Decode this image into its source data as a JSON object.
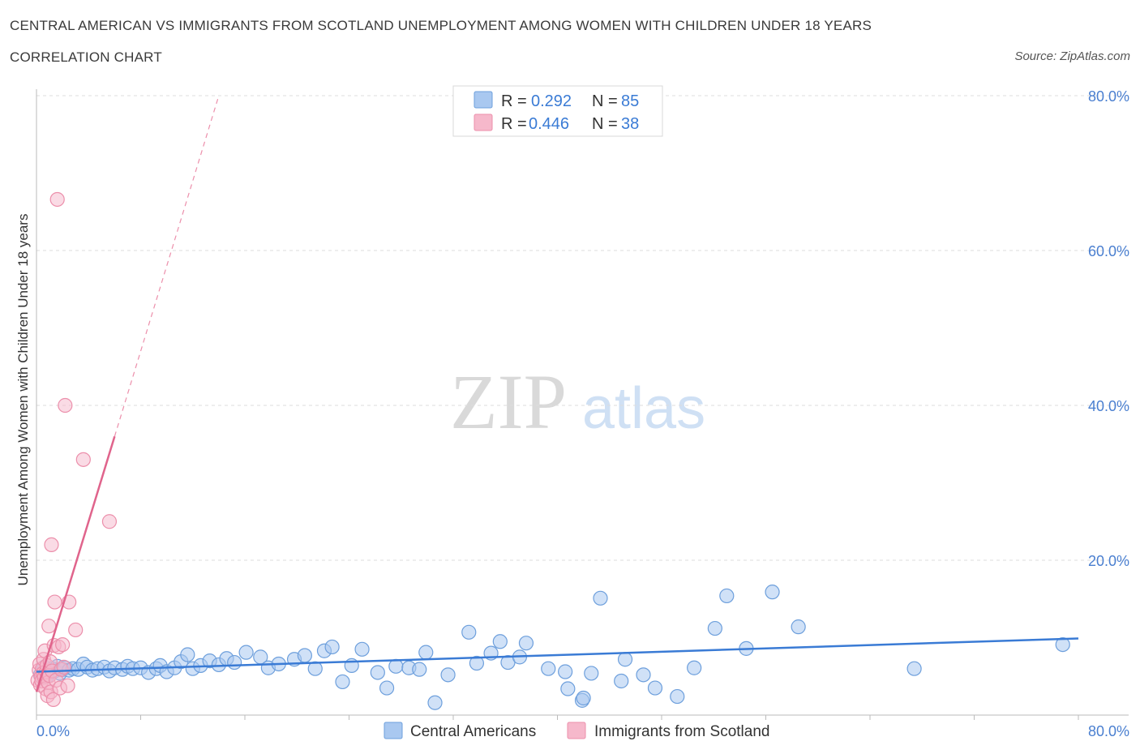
{
  "header": {
    "title": "CENTRAL AMERICAN VS IMMIGRANTS FROM SCOTLAND UNEMPLOYMENT AMONG WOMEN WITH CHILDREN UNDER 18 YEARS",
    "subtitle": "CORRELATION CHART",
    "source": "Source: ZipAtlas.com"
  },
  "watermark": {
    "zip": "ZIP",
    "atlas": "atlas"
  },
  "legend_top": {
    "rows": [
      {
        "r_label": "R =",
        "r_value": "0.292",
        "n_label": "N =",
        "n_value": "85"
      },
      {
        "r_label": "R =",
        "r_value": "0.446",
        "n_label": "N =",
        "n_value": "38"
      }
    ]
  },
  "legend_bottom": {
    "items": [
      {
        "label": "Central Americans"
      },
      {
        "label": "Immigrants from Scotland"
      }
    ]
  },
  "colors": {
    "blue_fill": "#a9c8f0",
    "blue_stroke": "#6d9fdc",
    "blue_line": "#3a7bd5",
    "pink_fill": "#f6b8cb",
    "pink_stroke": "#ec8fab",
    "pink_line": "#e0648c",
    "tick_text": "#4a7fd0",
    "grid": "#dddddd"
  },
  "chart_data": {
    "type": "scatter",
    "title": "CENTRAL AMERICAN VS IMMIGRANTS FROM SCOTLAND UNEMPLOYMENT AMONG WOMEN WITH CHILDREN UNDER 18 YEARS",
    "xlabel": "",
    "ylabel": "Unemployment Among Women with Children Under 18 years",
    "xlim": [
      0,
      80
    ],
    "ylim": [
      0,
      80
    ],
    "x_tick_labels": [
      "0.0%",
      "80.0%"
    ],
    "y_tick_labels": [
      "20.0%",
      "40.0%",
      "60.0%",
      "80.0%"
    ],
    "y_ticks": [
      20,
      40,
      60,
      80
    ],
    "grid": true,
    "legend_position": "top-center",
    "series": [
      {
        "name": "Central Americans",
        "R": 0.292,
        "N": 85,
        "trend": {
          "x": [
            0,
            80
          ],
          "y": [
            5.6,
            9.9
          ]
        },
        "points": [
          [
            0.3,
            5.2
          ],
          [
            0.5,
            5.8
          ],
          [
            0.6,
            6.2
          ],
          [
            0.8,
            5.0
          ],
          [
            1.0,
            5.5
          ],
          [
            1.2,
            6.0
          ],
          [
            1.4,
            5.7
          ],
          [
            1.6,
            6.3
          ],
          [
            1.8,
            5.4
          ],
          [
            2.0,
            5.9
          ],
          [
            2.2,
            6.1
          ],
          [
            2.5,
            5.8
          ],
          [
            2.8,
            6.0
          ],
          [
            3.2,
            5.9
          ],
          [
            3.6,
            6.6
          ],
          [
            3.9,
            6.2
          ],
          [
            4.3,
            5.8
          ],
          [
            4.7,
            6.0
          ],
          [
            5.2,
            6.2
          ],
          [
            5.6,
            5.7
          ],
          [
            6.0,
            6.1
          ],
          [
            6.6,
            5.9
          ],
          [
            7.0,
            6.3
          ],
          [
            7.4,
            6.0
          ],
          [
            8.0,
            6.1
          ],
          [
            8.6,
            5.5
          ],
          [
            9.2,
            6.0
          ],
          [
            9.5,
            6.4
          ],
          [
            10.0,
            5.6
          ],
          [
            10.6,
            6.1
          ],
          [
            11.1,
            6.9
          ],
          [
            11.6,
            7.8
          ],
          [
            12.0,
            6.0
          ],
          [
            12.6,
            6.4
          ],
          [
            13.3,
            7.0
          ],
          [
            14.0,
            6.5
          ],
          [
            14.6,
            7.3
          ],
          [
            15.2,
            6.8
          ],
          [
            16.1,
            8.1
          ],
          [
            17.2,
            7.5
          ],
          [
            17.8,
            6.1
          ],
          [
            18.6,
            6.6
          ],
          [
            19.8,
            7.2
          ],
          [
            20.6,
            7.7
          ],
          [
            21.4,
            6.0
          ],
          [
            22.1,
            8.3
          ],
          [
            22.7,
            8.8
          ],
          [
            23.5,
            4.3
          ],
          [
            24.2,
            6.4
          ],
          [
            25.0,
            8.5
          ],
          [
            26.2,
            5.5
          ],
          [
            26.9,
            3.5
          ],
          [
            27.6,
            6.3
          ],
          [
            28.6,
            6.1
          ],
          [
            29.4,
            5.9
          ],
          [
            29.9,
            8.1
          ],
          [
            30.6,
            1.6
          ],
          [
            31.6,
            5.2
          ],
          [
            33.2,
            10.7
          ],
          [
            33.8,
            6.7
          ],
          [
            34.9,
            8.0
          ],
          [
            35.6,
            9.5
          ],
          [
            36.2,
            6.8
          ],
          [
            37.1,
            7.5
          ],
          [
            37.6,
            9.3
          ],
          [
            39.3,
            6.0
          ],
          [
            40.6,
            5.6
          ],
          [
            40.8,
            3.4
          ],
          [
            41.9,
            1.9
          ],
          [
            42.6,
            5.4
          ],
          [
            43.3,
            15.1
          ],
          [
            44.9,
            4.4
          ],
          [
            45.2,
            7.2
          ],
          [
            46.6,
            5.2
          ],
          [
            47.5,
            3.5
          ],
          [
            49.2,
            2.4
          ],
          [
            50.5,
            6.1
          ],
          [
            52.1,
            11.2
          ],
          [
            53.0,
            15.4
          ],
          [
            54.5,
            8.6
          ],
          [
            56.5,
            15.9
          ],
          [
            58.5,
            11.4
          ],
          [
            67.4,
            6.0
          ],
          [
            78.8,
            9.1
          ],
          [
            42.0,
            2.2
          ]
        ]
      },
      {
        "name": "Immigrants from Scotland",
        "R": 0.446,
        "N": 38,
        "trend_solid": {
          "x": [
            0,
            6
          ],
          "y": [
            3.0,
            36.0
          ]
        },
        "trend_dashed": {
          "x": [
            6,
            14
          ],
          "y": [
            36.0,
            80.0
          ]
        },
        "points": [
          [
            0.1,
            4.5
          ],
          [
            0.2,
            5.8
          ],
          [
            0.25,
            6.6
          ],
          [
            0.3,
            3.9
          ],
          [
            0.35,
            5.0
          ],
          [
            0.4,
            4.4
          ],
          [
            0.45,
            6.0
          ],
          [
            0.5,
            5.4
          ],
          [
            0.55,
            7.2
          ],
          [
            0.6,
            4.9
          ],
          [
            0.65,
            8.3
          ],
          [
            0.7,
            3.4
          ],
          [
            0.75,
            5.6
          ],
          [
            0.8,
            6.4
          ],
          [
            0.85,
            2.5
          ],
          [
            0.9,
            4.2
          ],
          [
            0.95,
            11.5
          ],
          [
            1.0,
            5.1
          ],
          [
            1.05,
            6.9
          ],
          [
            1.1,
            3.0
          ],
          [
            1.15,
            22.0
          ],
          [
            1.2,
            5.7
          ],
          [
            1.3,
            2.0
          ],
          [
            1.35,
            9.0
          ],
          [
            1.4,
            14.6
          ],
          [
            1.5,
            4.5
          ],
          [
            1.6,
            66.6
          ],
          [
            1.7,
            8.8
          ],
          [
            1.8,
            3.5
          ],
          [
            1.9,
            5.9
          ],
          [
            2.0,
            9.1
          ],
          [
            2.1,
            6.2
          ],
          [
            2.2,
            40.0
          ],
          [
            2.4,
            3.8
          ],
          [
            2.5,
            14.6
          ],
          [
            3.0,
            11.0
          ],
          [
            3.6,
            33.0
          ],
          [
            5.6,
            25.0
          ]
        ]
      }
    ]
  }
}
